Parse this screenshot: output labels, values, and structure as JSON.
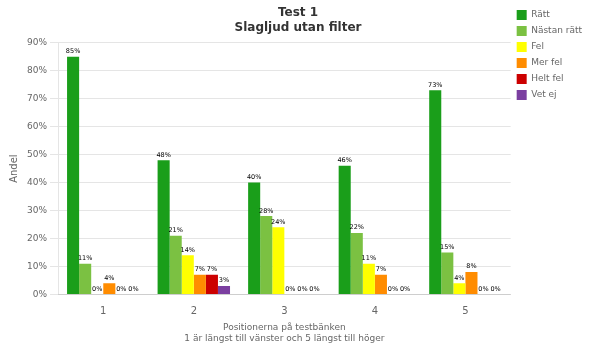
{
  "chart_data": {
    "type": "bar",
    "title": "Test 1\nSlagljud utan filter",
    "xlabel": "Positionerna på testbänken\n1 är längst till vänster och 5 längst till höger",
    "ylabel": "Andel",
    "categories": [
      "1",
      "2",
      "3",
      "4",
      "5"
    ],
    "series": [
      {
        "name": "Rätt",
        "color": "#1a9e1a",
        "values": [
          85,
          48,
          40,
          46,
          73
        ],
        "value_labels": [
          "85%",
          "48%",
          "40%",
          "46%",
          "73%"
        ]
      },
      {
        "name": "Nästan rätt",
        "color": "#7bc142",
        "values": [
          11,
          21,
          28,
          22,
          15
        ],
        "value_labels": [
          "11%",
          "21%",
          "28%",
          "22%",
          "15%"
        ]
      },
      {
        "name": "Fel",
        "color": "#ffff00",
        "values": [
          0,
          14,
          24,
          11,
          4
        ],
        "value_labels": [
          "0%",
          "14%",
          "24%",
          "11%",
          "4%"
        ]
      },
      {
        "name": "Mer fel",
        "color": "#ff8c00",
        "values": [
          4,
          7,
          0,
          7,
          8
        ],
        "value_labels": [
          "4%",
          "7%",
          "0%",
          "7%",
          "8%"
        ]
      },
      {
        "name": "Helt fel",
        "color": "#cc0000",
        "values": [
          0,
          7,
          0,
          0,
          0
        ],
        "value_labels": [
          "0%",
          "7%",
          "0%",
          "0%",
          "0%"
        ]
      },
      {
        "name": "Vet ej",
        "color": "#7b3fa0",
        "values": [
          0,
          3,
          0,
          0,
          0
        ],
        "value_labels": [
          "0%",
          "3%",
          "0%",
          "0%",
          "0%"
        ]
      }
    ],
    "ylim": [
      0,
      90
    ],
    "yticks": [
      {
        "value": 0,
        "label": "0%"
      },
      {
        "value": 10,
        "label": "10%"
      },
      {
        "value": 20,
        "label": "20%"
      },
      {
        "value": 30,
        "label": "30%"
      },
      {
        "value": 40,
        "label": "40%"
      },
      {
        "value": 50,
        "label": "50%"
      },
      {
        "value": 60,
        "label": "60%"
      },
      {
        "value": 70,
        "label": "70%"
      },
      {
        "value": 80,
        "label": "80%"
      },
      {
        "value": 90,
        "label": "90%"
      }
    ],
    "grid": true,
    "legend": "right",
    "data_labels": true
  }
}
